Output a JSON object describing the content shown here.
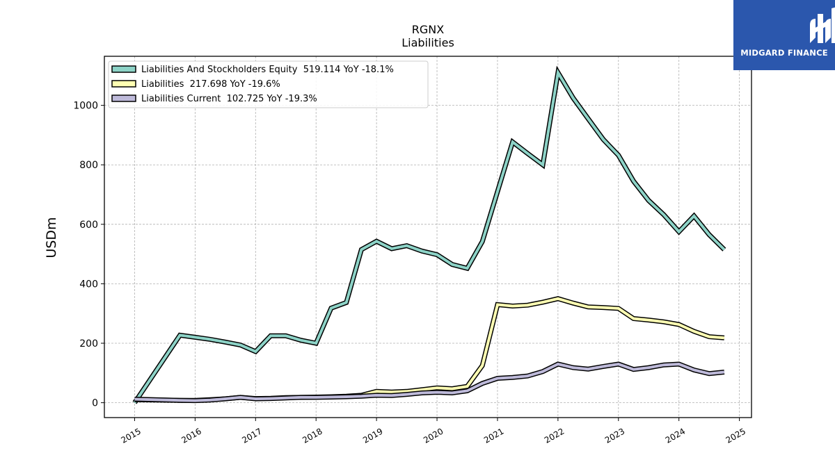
{
  "brand": {
    "name": "MIDGARD FINANCE",
    "color": "#2b57ad"
  },
  "chart_data": {
    "type": "line",
    "title": "RGNX",
    "subtitle": "Liabilities",
    "ylabel": "USDm",
    "xlabel": "",
    "xlim": [
      2014.5,
      2025.2
    ],
    "ylim": [
      -50,
      1165
    ],
    "yticks": [
      0,
      200,
      400,
      600,
      800,
      1000
    ],
    "xticks": [
      2015,
      2016,
      2017,
      2018,
      2019,
      2020,
      2021,
      2022,
      2023,
      2024,
      2025
    ],
    "grid": true,
    "legend_position": "top-left",
    "series": [
      {
        "name": "Liabilities And Stockholders Equity  519.114 YoY -18.1%",
        "color": "#8dd3c7",
        "x": [
          2015.0,
          2015.75,
          2016.0,
          2016.25,
          2016.5,
          2016.75,
          2017.0,
          2017.25,
          2017.5,
          2017.75,
          2018.0,
          2018.25,
          2018.5,
          2018.75,
          2019.0,
          2019.25,
          2019.5,
          2019.75,
          2020.0,
          2020.25,
          2020.5,
          2020.75,
          2021.0,
          2021.25,
          2021.5,
          2021.75,
          2022.0,
          2022.25,
          2022.5,
          2022.75,
          2023.0,
          2023.25,
          2023.5,
          2023.75,
          2024.0,
          2024.25,
          2024.5,
          2024.75
        ],
        "y": [
          0,
          227,
          220,
          213,
          204,
          194,
          172,
          225,
          225,
          210,
          200,
          318,
          337,
          515,
          543,
          518,
          528,
          510,
          498,
          465,
          452,
          542,
          710,
          877,
          838,
          800,
          1110,
          1025,
          955,
          885,
          832,
          745,
          680,
          632,
          575,
          628,
          565,
          515
        ]
      },
      {
        "name": "Liabilities  217.698 YoY -19.6%",
        "color": "#ffffb3",
        "x": [
          2015.0,
          2015.75,
          2016.0,
          2016.25,
          2016.5,
          2016.75,
          2017.0,
          2017.25,
          2017.5,
          2017.75,
          2018.0,
          2018.25,
          2018.5,
          2018.75,
          2019.0,
          2019.25,
          2019.5,
          2019.75,
          2020.0,
          2020.25,
          2020.5,
          2020.75,
          2021.0,
          2021.25,
          2021.5,
          2021.75,
          2022.0,
          2022.25,
          2022.5,
          2022.75,
          2023.0,
          2023.25,
          2023.5,
          2023.75,
          2024.0,
          2024.25,
          2024.5,
          2024.75
        ],
        "y": [
          10,
          8,
          8,
          10,
          13,
          18,
          14,
          15,
          17,
          18,
          19,
          20,
          22,
          25,
          38,
          36,
          38,
          44,
          50,
          47,
          55,
          125,
          330,
          325,
          328,
          338,
          350,
          335,
          322,
          320,
          317,
          283,
          278,
          272,
          263,
          240,
          222,
          218
        ]
      },
      {
        "name": "Liabilities Current  102.725 YoY -19.3%",
        "color": "#bebada",
        "x": [
          2015.0,
          2015.75,
          2016.0,
          2016.25,
          2016.5,
          2016.75,
          2017.0,
          2017.25,
          2017.5,
          2017.75,
          2018.0,
          2018.25,
          2018.5,
          2018.75,
          2019.0,
          2019.25,
          2019.5,
          2019.75,
          2020.0,
          2020.25,
          2020.5,
          2020.75,
          2021.0,
          2021.25,
          2021.5,
          2021.75,
          2022.0,
          2022.25,
          2022.5,
          2022.75,
          2023.0,
          2023.25,
          2023.5,
          2023.75,
          2024.0,
          2024.25,
          2024.5,
          2024.75
        ],
        "y": [
          12,
          8,
          7,
          9,
          13,
          18,
          13,
          14,
          16,
          18,
          18,
          19,
          20,
          22,
          25,
          24,
          28,
          33,
          35,
          33,
          40,
          65,
          82,
          85,
          90,
          105,
          130,
          118,
          113,
          122,
          130,
          112,
          118,
          127,
          130,
          110,
          98,
          103
        ]
      }
    ]
  }
}
